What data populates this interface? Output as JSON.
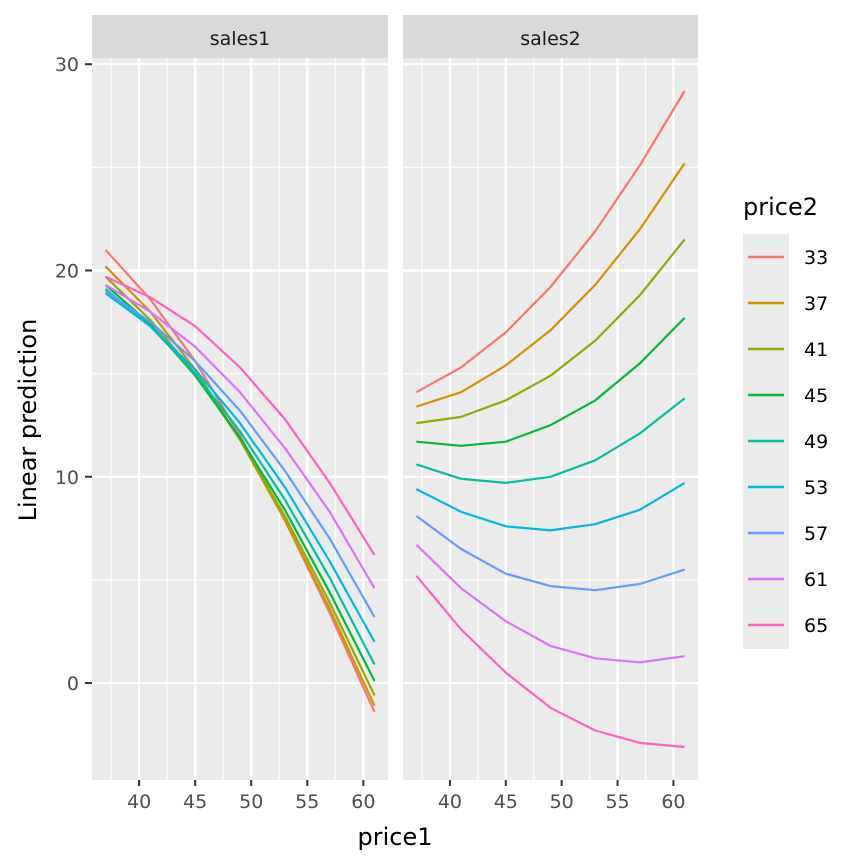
{
  "chart_data": {
    "type": "line",
    "title": "",
    "xlabel": "price1",
    "ylabel": "Linear prediction",
    "facets": [
      "sales1",
      "sales2"
    ],
    "x": [
      37,
      41,
      45,
      49,
      53,
      57,
      61
    ],
    "xticks": [
      40,
      45,
      50,
      55,
      60
    ],
    "yticks": [
      0,
      10,
      20,
      30
    ],
    "ylim": [
      -4.7,
      30.3
    ],
    "xlim": [
      35.8,
      62.2
    ],
    "grid": true,
    "legend": {
      "title": "price2",
      "position": "right"
    },
    "series": [
      {
        "name": "33",
        "color": "#F8766D",
        "sales1": [
          21.0,
          18.6,
          15.6,
          12.0,
          7.9,
          3.4,
          -1.4
        ],
        "sales2": [
          14.1,
          15.3,
          17.0,
          19.2,
          21.9,
          25.1,
          28.7
        ]
      },
      {
        "name": "37",
        "color": "#D39200",
        "sales1": [
          20.2,
          18.0,
          15.2,
          11.8,
          7.9,
          3.6,
          -1.1
        ],
        "sales2": [
          13.4,
          14.1,
          15.4,
          17.1,
          19.3,
          22.0,
          25.2
        ]
      },
      {
        "name": "41",
        "color": "#93AA00",
        "sales1": [
          19.7,
          17.6,
          15.0,
          11.8,
          8.1,
          3.9,
          -0.6
        ],
        "sales2": [
          12.6,
          12.9,
          13.7,
          14.9,
          16.6,
          18.8,
          21.5
        ]
      },
      {
        "name": "45",
        "color": "#00BA38",
        "sales1": [
          19.3,
          17.4,
          14.9,
          11.9,
          8.4,
          4.4,
          0.1
        ],
        "sales2": [
          11.7,
          11.5,
          11.7,
          12.5,
          13.7,
          15.5,
          17.7
        ]
      },
      {
        "name": "49",
        "color": "#00C19F",
        "sales1": [
          19.1,
          17.3,
          15.0,
          12.2,
          8.9,
          5.1,
          0.9
        ],
        "sales2": [
          10.6,
          9.9,
          9.7,
          10.0,
          10.8,
          12.1,
          13.8
        ]
      },
      {
        "name": "53",
        "color": "#00B9E3",
        "sales1": [
          18.9,
          17.3,
          15.2,
          12.6,
          9.5,
          5.9,
          2.0
        ],
        "sales2": [
          9.4,
          8.3,
          7.6,
          7.4,
          7.7,
          8.4,
          9.7
        ]
      },
      {
        "name": "57",
        "color": "#619CFF",
        "sales1": [
          19.0,
          17.5,
          15.6,
          13.2,
          10.3,
          7.0,
          3.2
        ],
        "sales2": [
          8.1,
          6.5,
          5.3,
          4.7,
          4.5,
          4.8,
          5.5
        ]
      },
      {
        "name": "61",
        "color": "#DB72FB",
        "sales1": [
          19.3,
          18.0,
          16.3,
          14.1,
          11.4,
          8.3,
          4.6
        ],
        "sales2": [
          6.7,
          4.6,
          3.0,
          1.8,
          1.2,
          1.0,
          1.3
        ]
      },
      {
        "name": "65",
        "color": "#FF61C3",
        "sales1": [
          19.7,
          18.7,
          17.3,
          15.3,
          12.8,
          9.7,
          6.2
        ],
        "sales2": [
          5.2,
          2.6,
          0.5,
          -1.2,
          -2.3,
          -2.9,
          -3.1
        ]
      }
    ]
  },
  "colors": {
    "panel_bg": "#EBEBEB",
    "strip_bg": "#D9D9D9",
    "grid": "#FFFFFF",
    "tick": "#333333"
  }
}
